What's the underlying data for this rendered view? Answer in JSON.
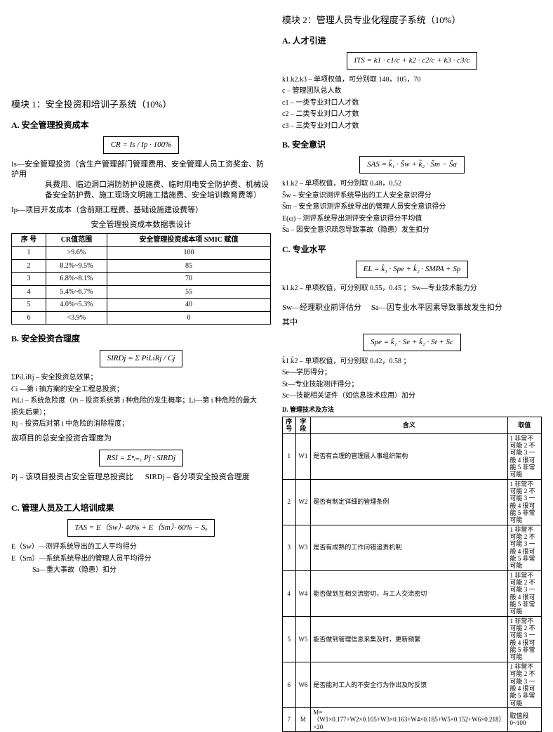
{
  "left": {
    "module_title": "模块 1：安全投资和培训子系统（10%）",
    "A": {
      "heading": "A. 安全管理投资成本",
      "formula": "CR = Is / Ip · 100%",
      "is_def": "Is—安全管理投资（含生产管理部门管理费用、安全管理人员工资奖金、防护用",
      "is_def2": "具费用、临边洞口消防防护设施费、临时用电安全防护费、机械设备安全防护费、施工现场文明施工措施费、安全培训教育费等）",
      "ip_def": "Ip—项目开发成本（含前期工程费、基础设施建设费等）",
      "table_caption": "安全管理投资成本数据表设计",
      "table_headers": [
        "序 号",
        "CR值范围",
        "安全管理投资成本项 SMIC 赋值"
      ],
      "table_rows": [
        [
          "1",
          ">9.6%",
          "100"
        ],
        [
          "2",
          "8.2%~9.5%",
          "85"
        ],
        [
          "3",
          "6.8%~8.1%",
          "70"
        ],
        [
          "4",
          "5.4%~6.7%",
          "55"
        ],
        [
          "5",
          "4.0%~5.3%",
          "40"
        ],
        [
          "6",
          "<3.9%",
          "0"
        ]
      ]
    },
    "B": {
      "heading": "B. 安全投资合理度",
      "formula1": "SIRDj = Σ PiLiRj / Cj",
      "line1": "ΣPiLiRj – 安全投资总效果；",
      "line2": "Ci —第 i 抽方案的安全工程总投资；",
      "line3": "PiLi – 系统危险度（Pi – 投资系统第 i 种危险的发生概率；Li—第 i 种危险的最大",
      "line4": "损失后果）；",
      "line5": "Rj – 投资后对第 i 中危险的消除程度；",
      "line6": "故项目的总安全投资合理度为",
      "formula2": "RSI = Σⁿⱼ₌₁ Pj · SIRDj",
      "line7a": "Pj – 该项目投资占安全管理总投资比",
      "line7b": "SIRDj – 各分项安全投资合理度"
    },
    "C": {
      "heading": "C. 管理人员及工人培训成果",
      "formula": "TAS = E（Sw）· 40% + E（Sm）· 60% − Sₒ",
      "d1": "E（Sw）—测评系统导出的工人平均得分",
      "d2": "E（Sm）—系统系统导出的管理人员平均得分",
      "d3": "Sa—重大事故（隐患）扣分"
    }
  },
  "right": {
    "module_title": "模块 2：管理人员专业化程度子系统（10%）",
    "A": {
      "heading": "A. 人才引进",
      "formula": "ITS = k1 · c1/c + k2 · c2/c + k3 · c3/c",
      "d1": "k1.k2.k3 – 单项权值，可分别取 140，105，70",
      "d2": "c – 管理团队总人数",
      "d3": "c1 – 一类专业对口人才数",
      "d4": "c2 – 二类专业对口人才数",
      "d5": "c3 – 三类专业对口人才数"
    },
    "B": {
      "heading": "B. 安全意识",
      "formula": "SAS = k̂₁ · Ŝw + k̂₂ · Ŝm − Ŝa",
      "d1": "k1.k2 – 单项权值，可分别取 0.48，0.52",
      "d2": "Ŝw – 安全意识测评系统导出的工人安全意识得分",
      "d3": "Ŝm – 安全意识测评系统导出的管理人员安全意识得分",
      "d4": "E(ω) – 测评系统导出测评安全意识得分平均值",
      "d5": "Ŝa – 因安全意识疏忽导致事故（隐患）发生扣分"
    },
    "C": {
      "heading": "C. 专业水平",
      "formula1": "EL = k̂₁ · Spe + k̂₂ · SMPA + Sp",
      "d1": "k1.k2 – 单项权值，可分别取 0.55，0.45  ；   Sw—专业技术能力分",
      "d2a": "Sw—经理职业前评估分",
      "d2b": "Sa—因专业水平因素导致事故发生扣分",
      "mid": "其中",
      "formula2": "Spe = k̃₁ · Se + k̃₂ · St + Sc",
      "d3": "k̃1.k̃2 – 单项权值，可分别取 0.42，0.58  ；",
      "d4": "Se—学历得分；",
      "d5": "St—专业技能测评得分；",
      "d6": "Sc—技能相关证件（如信息技术应用）加分"
    },
    "D": {
      "heading": "D. 管理技术及方法",
      "headers": [
        "序号",
        "字段",
        "含义",
        "取值"
      ],
      "rows": [
        [
          "1",
          "W1",
          "是否有合理的管理层人事组织架构",
          "1 非常不可能 2 不可能 3 一般 4 很可能 5 非常可能"
        ],
        [
          "2",
          "W2",
          "是否有制定详细的管理条例",
          "1 非常不可能 2 不可能 3 一般 4 很可能 5 非常可能"
        ],
        [
          "3",
          "W3",
          "是否有成熟的工作问错追责机制",
          "1 非常不可能 2 不可能 3 一般 4 很可能 5 非常可能"
        ],
        [
          "4",
          "W4",
          "能否做到互相交流密切，与工人交流密切",
          "1 非常不可能 2 不可能 3 一般 4 很可能 5 非常可能"
        ],
        [
          "5",
          "W5",
          "能否做到管理信息采集及时，更新频繁",
          "1 非常不可能 2 不可能 3 一般 4 很可能 5 非常可能"
        ],
        [
          "6",
          "W6",
          "是否能对工人的不安全行为作出及时反馈",
          "1 非常不可能 2 不可能 3 一般 4 很可能 5 非常可能"
        ],
        [
          "7",
          "M",
          "M=（W1×0.177+W2×0.105+W3×0.163+W4×0.185+W5×0.152+W6×0.218）×20",
          "取值段 0~100"
        ]
      ]
    }
  }
}
